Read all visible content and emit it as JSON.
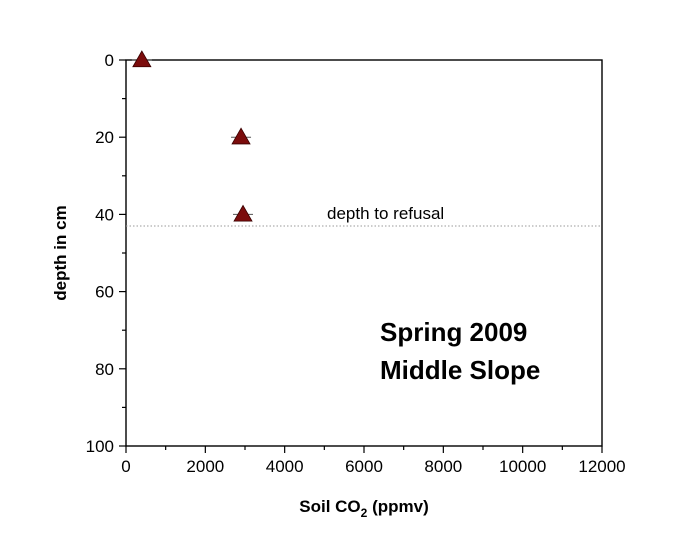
{
  "chart_data": {
    "type": "scatter",
    "title": "",
    "xlabel_main": "Soil CO",
    "xlabel_sub": "2",
    "xlabel_tail": " (ppmv)",
    "ylabel": "depth in cm",
    "xlim": [
      0,
      12000
    ],
    "ylim": [
      0,
      100
    ],
    "y_inverted": true,
    "x_ticks": [
      0,
      2000,
      4000,
      6000,
      8000,
      10000,
      12000
    ],
    "x_tick_labels": [
      "0",
      "2000",
      "4000",
      "6000",
      "8000",
      "10000",
      "12000"
    ],
    "y_ticks": [
      0,
      20,
      40,
      60,
      80,
      100
    ],
    "y_tick_labels": [
      "0",
      "20",
      "40",
      "60",
      "80",
      "100"
    ],
    "grid": false,
    "marker": "triangle",
    "marker_color": "#7b0c0c",
    "points": [
      {
        "x": 400,
        "y": 0
      },
      {
        "x": 2900,
        "y": 20
      },
      {
        "x": 2950,
        "y": 40
      }
    ],
    "refusal_line": {
      "y": 43,
      "label": "depth to refusal",
      "color": "#999999"
    },
    "annotation_lines": [
      "Spring 2009",
      "Middle Slope"
    ]
  }
}
